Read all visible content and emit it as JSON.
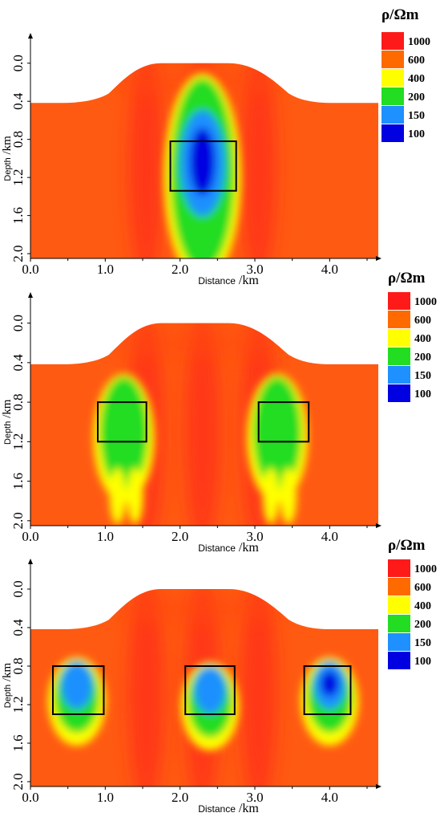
{
  "chart_data": [
    {
      "type": "heatmap",
      "panel": "1",
      "xlabel": "Distance /km",
      "ylabel": "Depth /km",
      "x_ticks": [
        "0.0",
        "1.0",
        "2.0",
        "3.0",
        "4.0"
      ],
      "y_ticks": [
        "0.0",
        "0.4",
        "0.8",
        "1.2",
        "1.6",
        "2.0"
      ],
      "x_tick_values": [
        0,
        1,
        2,
        3,
        4
      ],
      "y_tick_values": [
        0.0,
        0.4,
        0.8,
        1.2,
        1.6,
        2.0
      ],
      "xlim": [
        0,
        4.65
      ],
      "ylim": [
        2.05,
        -0.2
      ],
      "legend": {
        "title": "ρ/Ωm",
        "entries": [
          {
            "label": "1000",
            "color": "#ff1a1a"
          },
          {
            "label": "600",
            "color": "#ff6a00"
          },
          {
            "label": "400",
            "color": "#ffff00"
          },
          {
            "label": "200",
            "color": "#22dd22"
          },
          {
            "label": "150",
            "color": "#1e90ff"
          },
          {
            "label": "100",
            "color": "#0000e0"
          }
        ]
      },
      "model_boxes": [
        {
          "x0": 1.87,
          "x1": 2.75,
          "y0": 0.82,
          "y1": 1.34
        }
      ],
      "anomalies": [
        {
          "x_center": 2.3,
          "y_center": 1.05,
          "min_resistivity": 100
        }
      ]
    },
    {
      "type": "heatmap",
      "panel": "2",
      "xlabel": "Distance /km",
      "ylabel": "Depth /km",
      "x_ticks": [
        "0.0",
        "1.0",
        "2.0",
        "3.0",
        "4.0"
      ],
      "y_ticks": [
        "0.0",
        "0.4",
        "0.8",
        "1.2",
        "1.6",
        "2.0"
      ],
      "x_tick_values": [
        0,
        1,
        2,
        3,
        4
      ],
      "y_tick_values": [
        0.0,
        0.4,
        0.8,
        1.2,
        1.6,
        2.0
      ],
      "xlim": [
        0,
        4.65
      ],
      "ylim": [
        2.05,
        -0.2
      ],
      "legend": {
        "title": "ρ/Ωm",
        "entries": [
          {
            "label": "1000",
            "color": "#ff1a1a"
          },
          {
            "label": "600",
            "color": "#ff6a00"
          },
          {
            "label": "400",
            "color": "#ffff00"
          },
          {
            "label": "200",
            "color": "#22dd22"
          },
          {
            "label": "150",
            "color": "#1e90ff"
          },
          {
            "label": "100",
            "color": "#0000e0"
          }
        ]
      },
      "model_boxes": [
        {
          "x0": 0.9,
          "x1": 1.55,
          "y0": 0.8,
          "y1": 1.2
        },
        {
          "x0": 3.05,
          "x1": 3.72,
          "y0": 0.8,
          "y1": 1.2
        }
      ],
      "anomalies": [
        {
          "x_center": 1.25,
          "y_center": 1.0,
          "min_resistivity": 200
        },
        {
          "x_center": 3.3,
          "y_center": 1.0,
          "min_resistivity": 200
        }
      ]
    },
    {
      "type": "heatmap",
      "panel": "3",
      "xlabel": "Distance /km",
      "ylabel": "Depth /km",
      "x_ticks": [
        "0.0",
        "1.0",
        "2.0",
        "3.0",
        "4.0"
      ],
      "y_ticks": [
        "0.0",
        "0.4",
        "0.8",
        "1.2",
        "1.6",
        "2.0"
      ],
      "x_tick_values": [
        0,
        1,
        2,
        3,
        4
      ],
      "y_tick_values": [
        0.0,
        0.4,
        0.8,
        1.2,
        1.6,
        2.0
      ],
      "xlim": [
        0,
        4.65
      ],
      "ylim": [
        2.05,
        -0.2
      ],
      "legend": {
        "title": "ρ/Ωm",
        "entries": [
          {
            "label": "1000",
            "color": "#ff1a1a"
          },
          {
            "label": "600",
            "color": "#ff6a00"
          },
          {
            "label": "400",
            "color": "#ffff00"
          },
          {
            "label": "200",
            "color": "#22dd22"
          },
          {
            "label": "150",
            "color": "#1e90ff"
          },
          {
            "label": "100",
            "color": "#0000e0"
          }
        ]
      },
      "model_boxes": [
        {
          "x0": 0.3,
          "x1": 0.98,
          "y0": 0.8,
          "y1": 1.3
        },
        {
          "x0": 2.07,
          "x1": 2.73,
          "y0": 0.8,
          "y1": 1.3
        },
        {
          "x0": 3.66,
          "x1": 4.28,
          "y0": 0.8,
          "y1": 1.3
        }
      ],
      "anomalies": [
        {
          "x_center": 0.62,
          "y_center": 1.0,
          "min_resistivity": 150
        },
        {
          "x_center": 2.4,
          "y_center": 1.05,
          "min_resistivity": 150
        },
        {
          "x_center": 4.0,
          "y_center": 1.0,
          "min_resistivity": 100
        }
      ]
    }
  ]
}
